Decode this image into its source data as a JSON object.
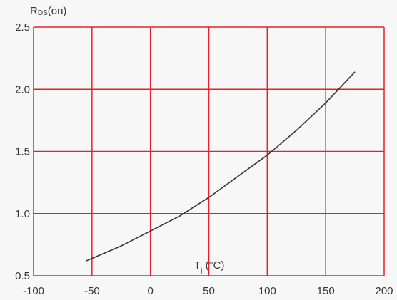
{
  "chart_data": {
    "type": "line",
    "title": "",
    "ylabel_main": "R",
    "ylabel_sub": "DS",
    "ylabel_suffix": "(on)",
    "xlabel_main": "T",
    "xlabel_sub": "j",
    "xlabel_suffix": " (°C)",
    "xlim": [
      -100,
      200
    ],
    "ylim": [
      0.5,
      2.5
    ],
    "x_ticks": [
      -100,
      -50,
      0,
      50,
      100,
      150,
      200
    ],
    "x_tick_labels": [
      "-100",
      "-50",
      "0",
      "50",
      "100",
      "150",
      "200"
    ],
    "y_ticks": [
      0.5,
      1.0,
      1.5,
      2.0,
      2.5
    ],
    "y_tick_labels": [
      "0.5",
      "1.0",
      "1.5",
      "2.0",
      "2.5"
    ],
    "grid": true,
    "colors": {
      "grid": "#e8202a",
      "line": "#333333",
      "text": "#333333"
    },
    "series": [
      {
        "x": [
          -55,
          -25,
          0,
          25,
          50,
          75,
          100,
          125,
          150,
          175
        ],
        "values": [
          0.62,
          0.74,
          0.86,
          0.98,
          1.13,
          1.3,
          1.47,
          1.67,
          1.89,
          2.14
        ]
      }
    ]
  }
}
